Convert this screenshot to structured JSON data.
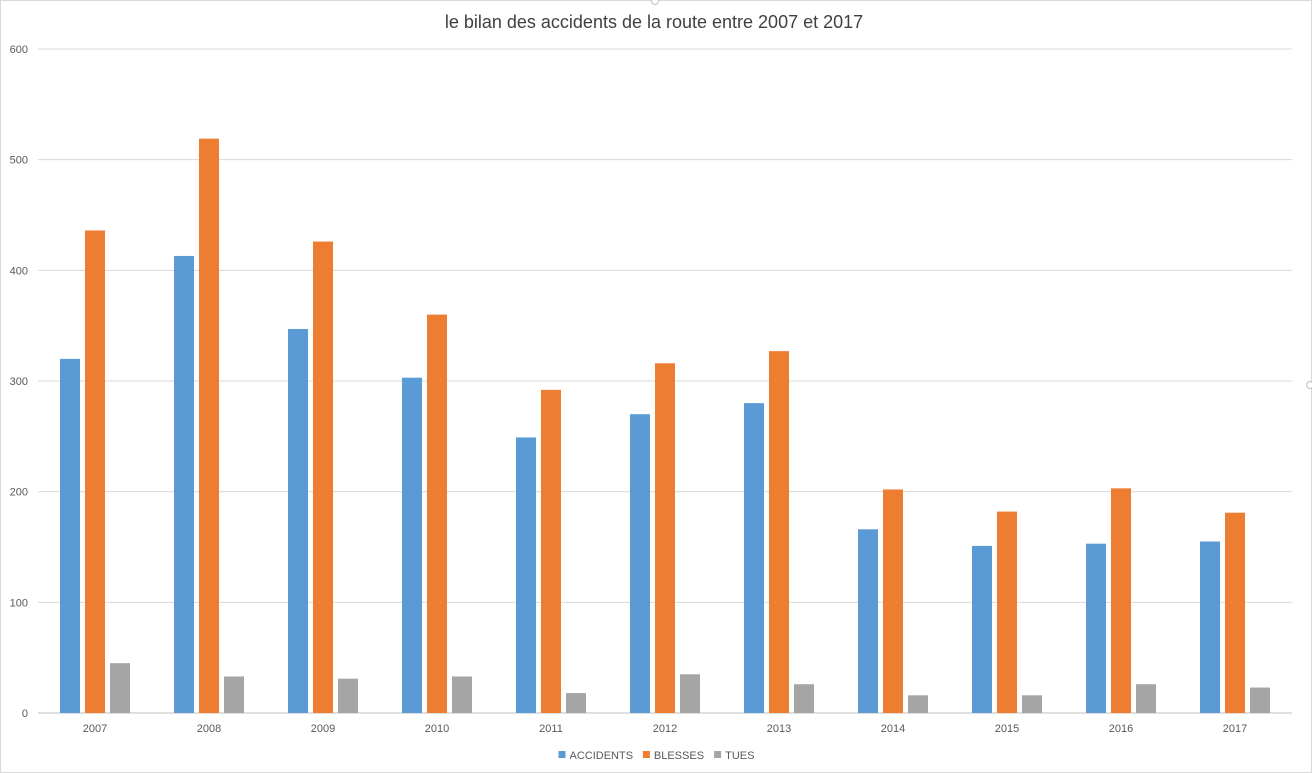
{
  "chart_data": {
    "type": "bar",
    "title": "le bilan des accidents de la route entre 2007 et 2017",
    "xlabel": "",
    "ylabel": "",
    "categories": [
      "2007",
      "2008",
      "2009",
      "2010",
      "2011",
      "2012",
      "2013",
      "2014",
      "2015",
      "2016",
      "2017"
    ],
    "series": [
      {
        "name": "ACCIDENTS",
        "color": "#5b9bd5",
        "values": [
          320,
          413,
          347,
          303,
          249,
          270,
          280,
          166,
          151,
          153,
          155
        ]
      },
      {
        "name": "BLESSES",
        "color": "#ed7d31",
        "values": [
          436,
          519,
          426,
          360,
          292,
          316,
          327,
          202,
          182,
          203,
          181
        ]
      },
      {
        "name": "TUES",
        "color": "#a5a5a5",
        "values": [
          45,
          33,
          31,
          33,
          18,
          35,
          26,
          16,
          16,
          26,
          23
        ]
      }
    ],
    "ylim": [
      0,
      600
    ],
    "yticks": [
      0,
      100,
      200,
      300,
      400,
      500,
      600
    ],
    "grid": true,
    "legend_position": "bottom"
  }
}
